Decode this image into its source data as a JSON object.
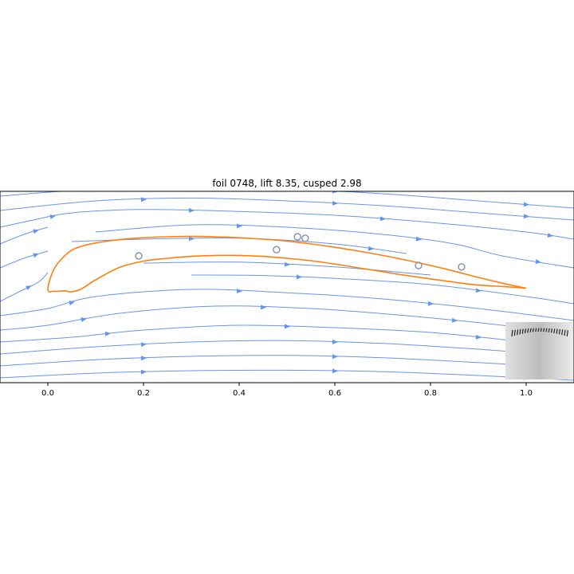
{
  "chart_data": {
    "type": "line",
    "title": "foil 0748, lift  8.35, cusped  2.98",
    "xlabel": "",
    "ylabel": "",
    "xlim": [
      -0.1,
      1.1
    ],
    "ylim": [
      -0.2,
      0.2
    ],
    "xticks": [
      {
        "value": 0.0,
        "label": "0.0"
      },
      {
        "value": 0.2,
        "label": "0.2"
      },
      {
        "value": 0.4,
        "label": "0.4"
      },
      {
        "value": 0.6,
        "label": "0.6"
      },
      {
        "value": 0.8,
        "label": "0.8"
      },
      {
        "value": 1.0,
        "label": "1.0"
      }
    ],
    "grid": false,
    "colors": {
      "foil": "#ff7f0e",
      "streamline": "#6495ed",
      "streamline_faint": "#b8c8ee",
      "vortex": "#7f8fb0"
    },
    "series": [
      {
        "kind": "foil_outline",
        "x": [
          1.0,
          0.95,
          0.9,
          0.85,
          0.8,
          0.75,
          0.7,
          0.65,
          0.6,
          0.55,
          0.5,
          0.45,
          0.4,
          0.35,
          0.3,
          0.25,
          0.2,
          0.15,
          0.1,
          0.07,
          0.05,
          0.03,
          0.015,
          0.005,
          0.0,
          0.003,
          0.01,
          0.02,
          0.035,
          0.05,
          0.07,
          0.1,
          0.15,
          0.2,
          0.25,
          0.3,
          0.35,
          0.4,
          0.45,
          0.5,
          0.55,
          0.6,
          0.65,
          0.7,
          0.75,
          0.8,
          0.85,
          0.9,
          0.95,
          1.0
        ],
        "y": [
          -0.0025,
          0.008,
          0.02,
          0.033,
          0.045,
          0.056,
          0.066,
          0.075,
          0.083,
          0.09,
          0.096,
          0.1,
          0.103,
          0.105,
          0.106,
          0.105,
          0.103,
          0.099,
          0.092,
          0.085,
          0.077,
          0.06,
          0.041,
          0.018,
          -0.004,
          -0.01,
          -0.009,
          -0.009,
          -0.008,
          -0.01,
          -0.004,
          0.015,
          0.041,
          0.054,
          0.06,
          0.064,
          0.066,
          0.066,
          0.064,
          0.06,
          0.055,
          0.048,
          0.04,
          0.032,
          0.024,
          0.017,
          0.01,
          0.004,
          0.001,
          -0.0025
        ]
      }
    ],
    "streamlines": [
      {
        "x": [
          -0.1,
          0.1,
          0.3,
          0.5,
          0.7,
          0.9,
          1.1
        ],
        "y": [
          0.19,
          0.205,
          0.21,
          0.205,
          0.195,
          0.18,
          0.165
        ]
      },
      {
        "x": [
          -0.1,
          0.1,
          0.3,
          0.5,
          0.7,
          0.9,
          1.1
        ],
        "y": [
          0.16,
          0.18,
          0.186,
          0.18,
          0.17,
          0.155,
          0.14
        ]
      },
      {
        "x": [
          -0.1,
          -0.03,
          0.05,
          0.2,
          0.4,
          0.6,
          0.8,
          1.0,
          1.1
        ],
        "y": [
          0.125,
          0.14,
          0.155,
          0.162,
          0.158,
          0.15,
          0.135,
          0.115,
          0.1
        ]
      },
      {
        "x": [
          -0.1,
          -0.05,
          0.0
        ],
        "y": [
          0.09,
          0.11,
          0.125
        ]
      },
      {
        "x": [
          -0.1,
          -0.05,
          0.0
        ],
        "y": [
          0.04,
          0.06,
          0.075
        ]
      },
      {
        "x": [
          0.1,
          0.3,
          0.5,
          0.7,
          0.85,
          0.95,
          1.1
        ],
        "y": [
          0.115,
          0.13,
          0.125,
          0.11,
          0.09,
          0.065,
          0.04
        ]
      },
      {
        "x": [
          -0.1,
          -0.06,
          -0.02,
          0.0
        ],
        "y": [
          -0.03,
          -0.01,
          0.01,
          0.03
        ]
      },
      {
        "x": [
          -0.1,
          0.0,
          0.1,
          0.3,
          0.5,
          0.7,
          0.9,
          1.1
        ],
        "y": [
          -0.06,
          -0.045,
          -0.02,
          -0.005,
          -0.012,
          -0.025,
          -0.045,
          -0.07
        ]
      },
      {
        "x": [
          -0.1,
          0.0,
          0.15,
          0.35,
          0.55,
          0.75,
          0.95,
          1.1
        ],
        "y": [
          -0.09,
          -0.08,
          -0.055,
          -0.04,
          -0.045,
          -0.06,
          -0.08,
          -0.1
        ]
      },
      {
        "x": [
          -0.1,
          0.05,
          0.2,
          0.4,
          0.6,
          0.8,
          1.0,
          1.1
        ],
        "y": [
          -0.115,
          -0.105,
          -0.09,
          -0.08,
          -0.085,
          -0.095,
          -0.115,
          -0.125
        ]
      },
      {
        "x": [
          -0.1,
          0.1,
          0.3,
          0.5,
          0.7,
          0.9,
          1.1
        ],
        "y": [
          -0.14,
          -0.125,
          -0.115,
          -0.112,
          -0.118,
          -0.13,
          -0.145
        ]
      },
      {
        "x": [
          -0.1,
          0.1,
          0.3,
          0.5,
          0.7,
          0.9,
          1.1
        ],
        "y": [
          -0.165,
          -0.152,
          -0.145,
          -0.143,
          -0.148,
          -0.158,
          -0.17
        ]
      },
      {
        "x": [
          -0.1,
          0.1,
          0.3,
          0.5,
          0.7,
          0.9,
          1.1
        ],
        "y": [
          -0.19,
          -0.18,
          -0.175,
          -0.174,
          -0.177,
          -0.185,
          -0.195
        ]
      },
      {
        "x": [
          0.3,
          0.45,
          0.6,
          0.8,
          1.0,
          1.1
        ],
        "y": [
          0.025,
          0.024,
          0.018,
          0.005,
          -0.02,
          -0.035
        ]
      },
      {
        "x": [
          0.2,
          0.4,
          0.6,
          0.8
        ],
        "y": [
          0.05,
          0.052,
          0.042,
          0.025
        ]
      },
      {
        "x": [
          0.05,
          0.2,
          0.4,
          0.6,
          0.75
        ],
        "y": [
          0.095,
          0.1,
          0.102,
          0.09,
          0.07
        ]
      }
    ],
    "vortices": [
      {
        "x": 0.19,
        "y": 0.065
      },
      {
        "x": 0.478,
        "y": 0.078
      },
      {
        "x": 0.522,
        "y": 0.105
      },
      {
        "x": 0.538,
        "y": 0.102
      },
      {
        "x": 0.775,
        "y": 0.045
      },
      {
        "x": 0.865,
        "y": 0.042
      }
    ],
    "inset": {
      "position": "bottom-right"
    }
  }
}
